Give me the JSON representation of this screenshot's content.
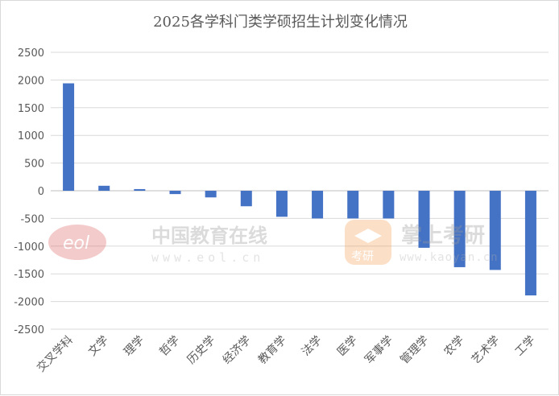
{
  "chart_data": {
    "type": "bar",
    "title": "2025各学科门类学硕招生计划变化情况",
    "categories": [
      "交叉学科",
      "文学",
      "理学",
      "哲学",
      "历史学",
      "经济学",
      "教育学",
      "法学",
      "医学",
      "军事学",
      "管理学",
      "农学",
      "艺术学",
      "工学"
    ],
    "values": [
      1940,
      90,
      30,
      -60,
      -120,
      -280,
      -470,
      -500,
      -500,
      -500,
      -1030,
      -1380,
      -1430,
      -1890
    ],
    "ylim": [
      -2500,
      2500
    ],
    "yticks": [
      2500,
      2000,
      1500,
      1000,
      500,
      0,
      -500,
      -1000,
      -1500,
      -2000,
      -2500
    ],
    "grid": true,
    "bar_color": "#4472c4"
  },
  "watermarks": {
    "eol_logo_text": "eol",
    "eol_name": "中国教育在线",
    "eol_url": "www.eol.cn",
    "kaoyan_name": "掌上考研",
    "kaoyan_badge": "考研",
    "kaoyan_url": "www.kaoyan.cn"
  }
}
